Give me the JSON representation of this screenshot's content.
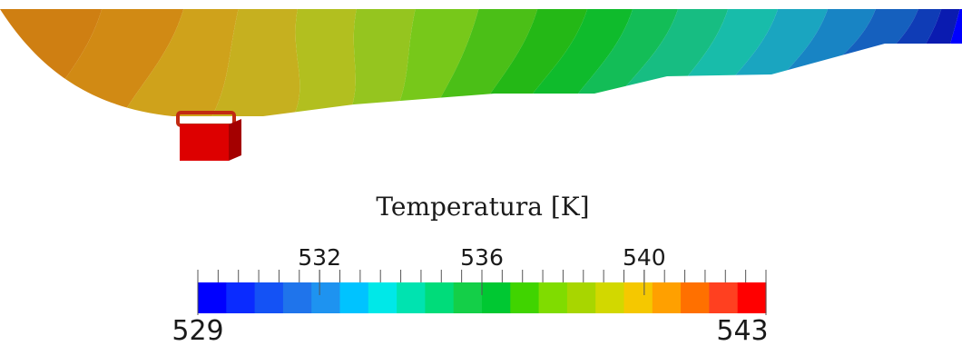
{
  "legend": {
    "title": "Temperatura [K]",
    "min_label": "529",
    "max_label": "543",
    "range": [
      529,
      543
    ],
    "major_ticks": [
      {
        "value": 532,
        "label": "532"
      },
      {
        "value": 536,
        "label": "536"
      },
      {
        "value": 540,
        "label": "540"
      }
    ],
    "minor_tick_step": 0.5,
    "colors": [
      "#0000ff",
      "#0a2bff",
      "#1452f5",
      "#1f74eb",
      "#1e93f0",
      "#00c3ff",
      "#00e8e8",
      "#00e3b0",
      "#00dc7a",
      "#14cf48",
      "#00c832",
      "#40d400",
      "#80dc00",
      "#a8d600",
      "#d2d800",
      "#f5c800",
      "#ffa000",
      "#ff7000",
      "#ff4020",
      "#ff0000"
    ]
  },
  "field": {
    "colors": [
      "#cf7f12",
      "#d18a14",
      "#cfa21b",
      "#c6b01f",
      "#b2bf1f",
      "#95c51f",
      "#77c81a",
      "#4bbf17",
      "#24b816",
      "#0fbb2c",
      "#13bd57",
      "#17bd82",
      "#18bcaa",
      "#1aa5c0",
      "#1884c4",
      "#1560be",
      "#0f3cb6",
      "#0a1bb0",
      "#0000ff"
    ]
  },
  "probe": {
    "color": "#dd0000",
    "side_color": "#a40000",
    "ring_color": "#c22a12"
  }
}
